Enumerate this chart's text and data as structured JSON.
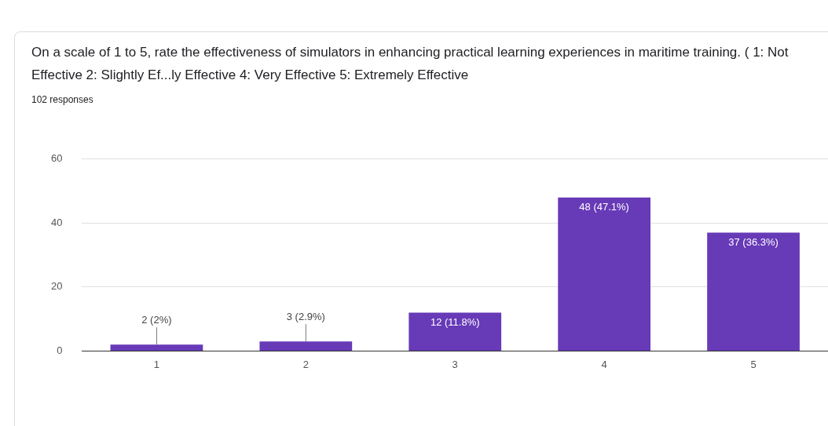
{
  "chart_data": {
    "type": "bar",
    "title": "On a scale of 1 to 5, rate the effectiveness of simulators in enhancing practical learning experiences in maritime training. ( 1: Not Effective 2: Slightly Ef...ly Effective 4: Very Effective 5: Extremely Effective",
    "subtitle": "102 responses",
    "categories": [
      "1",
      "2",
      "3",
      "4",
      "5"
    ],
    "values": [
      2,
      3,
      12,
      48,
      37
    ],
    "value_labels": [
      "2 (2%)",
      "3 (2.9%)",
      "12 (11.8%)",
      "48 (47.1%)",
      "37 (36.3%)"
    ],
    "color": "#673ab7",
    "ylim": [
      0,
      60
    ],
    "yticks": [
      0,
      20,
      40,
      60
    ],
    "grid": "y",
    "legend": false
  }
}
